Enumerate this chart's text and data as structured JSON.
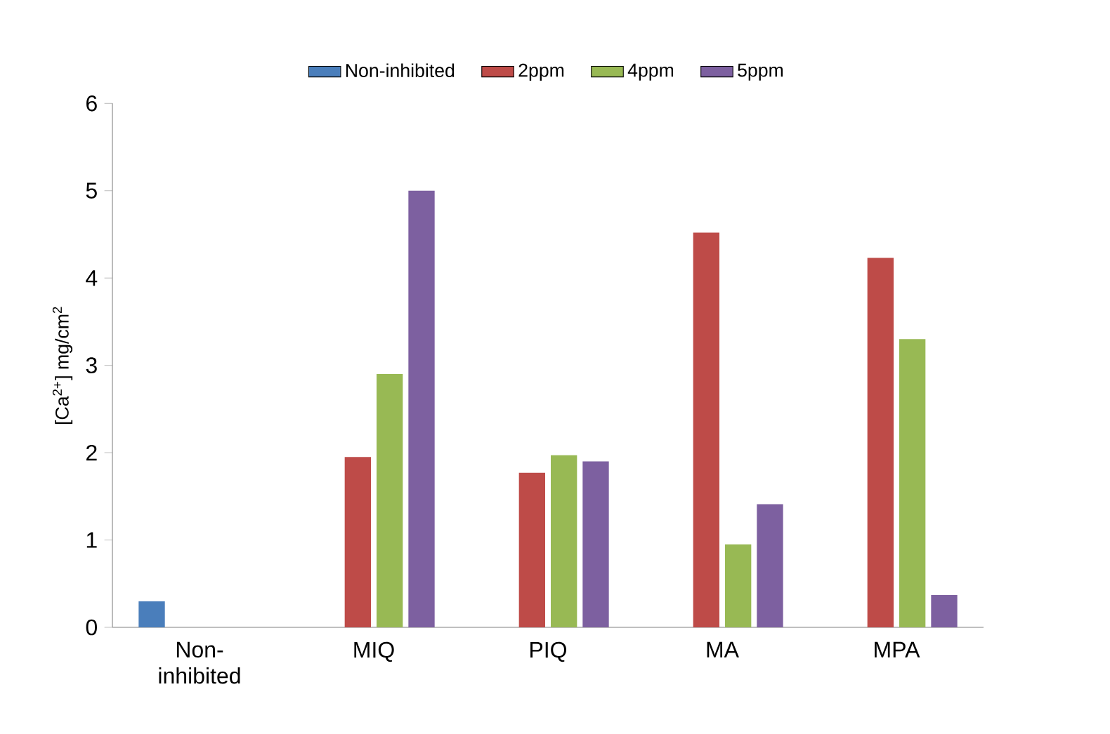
{
  "chart_data": {
    "type": "bar",
    "ylabel": "[Ca$^{2+}$] mg/cm$^{2}$",
    "categories": [
      "Non-inhibited",
      "MIQ",
      "PIQ",
      "MA",
      "MPA"
    ],
    "series": [
      {
        "name": "Non-inhibited",
        "color": "#4a7ebb",
        "values": [
          0.3,
          null,
          null,
          null,
          null
        ]
      },
      {
        "name": "2ppm",
        "color": "#be4b48",
        "values": [
          null,
          1.95,
          1.77,
          4.52,
          4.23
        ]
      },
      {
        "name": "4ppm",
        "color": "#98b954",
        "values": [
          null,
          2.9,
          1.97,
          0.95,
          3.3
        ]
      },
      {
        "name": "5ppm",
        "color": "#7d60a0",
        "values": [
          null,
          5.0,
          1.9,
          1.41,
          0.37
        ]
      }
    ],
    "ylim": [
      0,
      6
    ],
    "yticks": [
      0,
      1,
      2,
      3,
      4,
      5,
      6
    ],
    "grid": false,
    "legend": "top"
  }
}
